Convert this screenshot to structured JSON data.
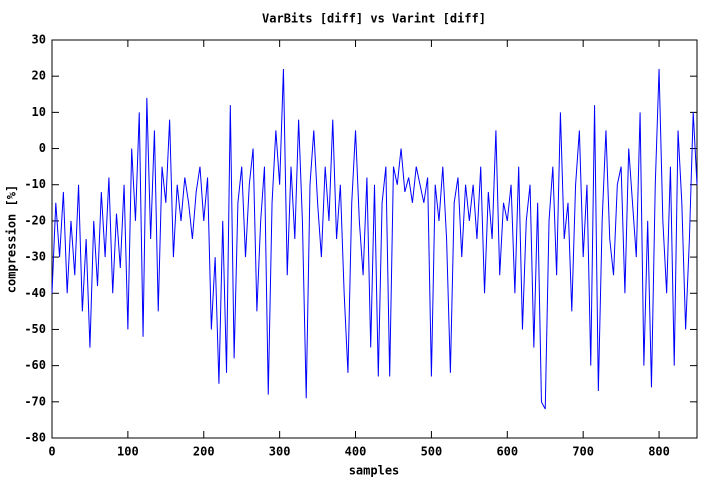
{
  "chart_data": {
    "type": "line",
    "title": "VarBits [diff] vs Varint [diff]",
    "x_label": "samples",
    "y_label": "compression [%]",
    "x": [
      0,
      5,
      10,
      15,
      20,
      25,
      30,
      35,
      40,
      45,
      50,
      55,
      60,
      65,
      70,
      75,
      80,
      85,
      90,
      95,
      100,
      105,
      110,
      115,
      120,
      125,
      130,
      135,
      140,
      145,
      150,
      155,
      160,
      165,
      170,
      175,
      180,
      185,
      190,
      195,
      200,
      205,
      210,
      215,
      220,
      225,
      230,
      235,
      240,
      245,
      250,
      255,
      260,
      265,
      270,
      275,
      280,
      285,
      290,
      295,
      300,
      305,
      310,
      315,
      320,
      325,
      330,
      335,
      340,
      345,
      350,
      355,
      360,
      365,
      370,
      375,
      380,
      385,
      390,
      395,
      400,
      405,
      410,
      415,
      420,
      425,
      430,
      435,
      440,
      445,
      450,
      455,
      460,
      465,
      470,
      475,
      480,
      485,
      490,
      495,
      500,
      505,
      510,
      515,
      520,
      525,
      530,
      535,
      540,
      545,
      550,
      555,
      560,
      565,
      570,
      575,
      580,
      585,
      590,
      595,
      600,
      605,
      610,
      615,
      620,
      625,
      630,
      635,
      640,
      645,
      650,
      655,
      660,
      665,
      670,
      675,
      680,
      685,
      690,
      695,
      700,
      705,
      710,
      715,
      720,
      725,
      730,
      735,
      740,
      745,
      750,
      755,
      760,
      765,
      770,
      775,
      780,
      785,
      790,
      795,
      800,
      805,
      810,
      815,
      820,
      825,
      830,
      835,
      840,
      845,
      850
    ],
    "series": [
      {
        "name": "VarBits vs Varint",
        "color": "#0000ff",
        "values": [
          -40,
          -15,
          -30,
          -12,
          -40,
          -20,
          -35,
          -10,
          -45,
          -25,
          -55,
          -20,
          -38,
          -12,
          -30,
          -8,
          -40,
          -18,
          -33,
          -10,
          -50,
          0,
          -20,
          10,
          -52,
          14,
          -25,
          5,
          -45,
          -5,
          -15,
          8,
          -30,
          -10,
          -20,
          -8,
          -15,
          -25,
          -12,
          -5,
          -20,
          -8,
          -50,
          -30,
          -65,
          -20,
          -62,
          12,
          -58,
          -15,
          -5,
          -30,
          -10,
          0,
          -45,
          -20,
          -5,
          -68,
          -15,
          5,
          -10,
          22,
          -35,
          -5,
          -25,
          8,
          -20,
          -69,
          -10,
          5,
          -15,
          -30,
          -5,
          -20,
          8,
          -25,
          -10,
          -40,
          -62,
          -15,
          5,
          -20,
          -35,
          -8,
          -55,
          -10,
          -63,
          -15,
          -5,
          -63,
          -5,
          -10,
          0,
          -12,
          -8,
          -15,
          -5,
          -10,
          -15,
          -8,
          -63,
          -10,
          -20,
          -5,
          -25,
          -62,
          -15,
          -8,
          -30,
          -10,
          -20,
          -10,
          -25,
          -5,
          -40,
          -12,
          -25,
          5,
          -35,
          -15,
          -20,
          -10,
          -40,
          -5,
          -50,
          -20,
          -10,
          -55,
          -15,
          -70,
          -72,
          -20,
          -5,
          -35,
          10,
          -25,
          -15,
          -45,
          -10,
          5,
          -30,
          -10,
          -60,
          12,
          -67,
          -20,
          5,
          -25,
          -35,
          -10,
          -5,
          -40,
          0,
          -15,
          -30,
          10,
          -60,
          -20,
          -66,
          -10,
          22,
          -20,
          -40,
          -5,
          -60,
          5,
          -15,
          -50,
          -25,
          10,
          -10
        ]
      }
    ],
    "xlim": [
      0,
      850
    ],
    "ylim": [
      -80,
      30
    ],
    "xticks": [
      0,
      100,
      200,
      300,
      400,
      500,
      600,
      700,
      800
    ],
    "yticks": [
      -80,
      -70,
      -60,
      -50,
      -40,
      -30,
      -20,
      -10,
      0,
      10,
      20,
      30
    ]
  }
}
